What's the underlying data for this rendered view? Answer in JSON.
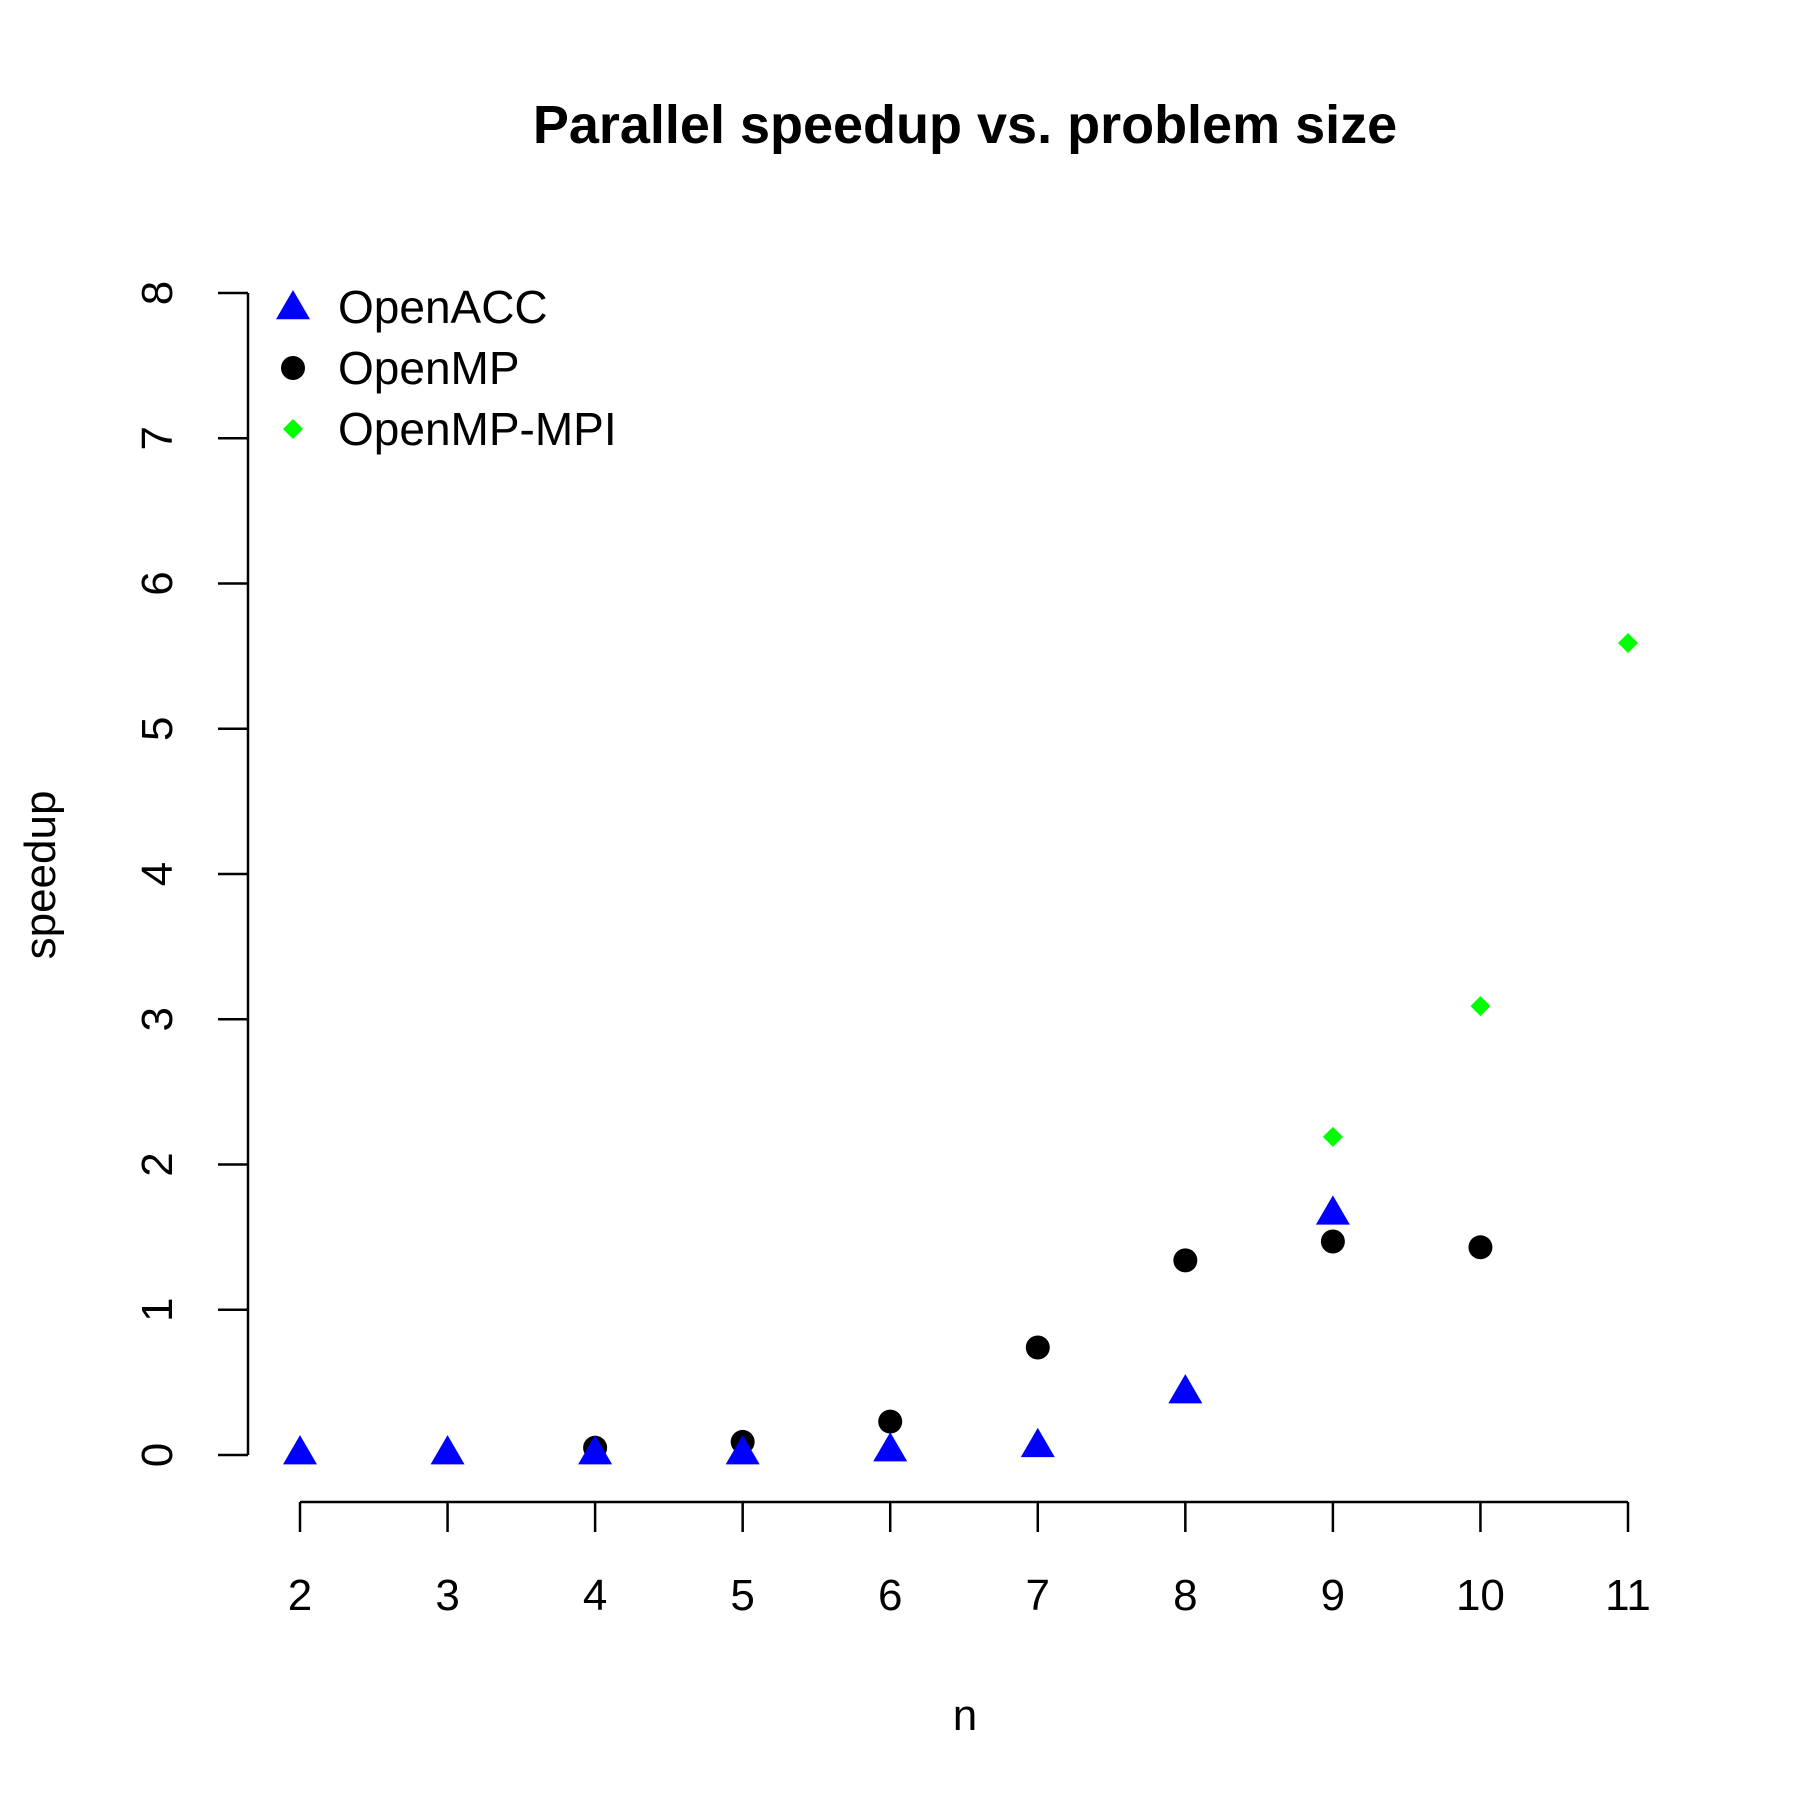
{
  "chart_data": {
    "type": "scatter",
    "title": "Parallel speedup vs. problem size",
    "xlabel": "n",
    "ylabel": "speedup",
    "xlim": [
      2,
      11
    ],
    "ylim": [
      0,
      8
    ],
    "x_ticks": [
      "2",
      "3",
      "4",
      "5",
      "6",
      "7",
      "8",
      "9",
      "10",
      "11"
    ],
    "y_ticks": [
      "0",
      "1",
      "2",
      "3",
      "4",
      "5",
      "6",
      "7",
      "8"
    ],
    "grid": false,
    "legend_position": "top-left",
    "series": [
      {
        "name": "OpenACC",
        "marker": "triangle",
        "color": "#0000ff",
        "points": [
          [
            2,
            0.02
          ],
          [
            3,
            0.02
          ],
          [
            4,
            0.02
          ],
          [
            5,
            0.02
          ],
          [
            6,
            0.04
          ],
          [
            7,
            0.07
          ],
          [
            8,
            0.44
          ],
          [
            9,
            1.67
          ]
        ]
      },
      {
        "name": "OpenMP",
        "marker": "circle",
        "color": "#000000",
        "points": [
          [
            4,
            0.05
          ],
          [
            5,
            0.09
          ],
          [
            6,
            0.23
          ],
          [
            7,
            0.74
          ],
          [
            8,
            1.34
          ],
          [
            9,
            1.47
          ],
          [
            10,
            1.43
          ]
        ]
      },
      {
        "name": "OpenMP-MPI",
        "marker": "diamond",
        "color": "#00ff00",
        "points": [
          [
            9,
            2.19
          ],
          [
            10,
            3.09
          ],
          [
            11,
            5.59
          ]
        ]
      }
    ]
  }
}
